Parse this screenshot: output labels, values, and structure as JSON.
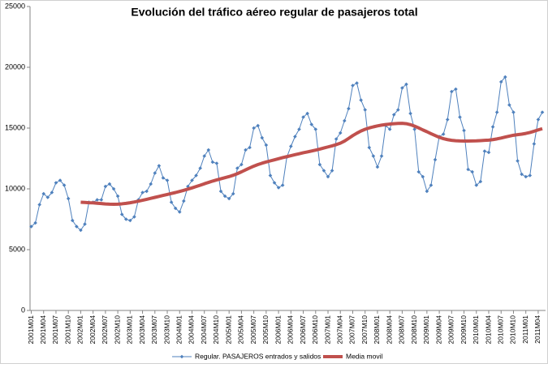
{
  "chart_data": {
    "type": "line",
    "title": "Evolución del tráfico aéreo regular de pasajeros total",
    "categories": [
      "2001M01",
      null,
      null,
      "2001M04",
      null,
      null,
      "2001M07",
      null,
      null,
      "2001M10",
      null,
      null,
      "2002M01",
      null,
      null,
      "2002M04",
      null,
      null,
      "2002M07",
      null,
      null,
      "2002M10",
      null,
      null,
      "2003M01",
      null,
      null,
      "2003M04",
      null,
      null,
      "2003M07",
      null,
      null,
      "2003M10",
      null,
      null,
      "2004M01",
      null,
      null,
      "2004M04",
      null,
      null,
      "2004M07",
      null,
      null,
      "2004M10",
      null,
      null,
      "2005M01",
      null,
      null,
      "2005M04",
      null,
      null,
      "2005M07",
      null,
      null,
      "2005M10",
      null,
      null,
      "2006M01",
      null,
      null,
      "2006M04",
      null,
      null,
      "2006M07",
      null,
      null,
      "2006M10",
      null,
      null,
      "2007M01",
      null,
      null,
      "2007M04",
      null,
      null,
      "2007M07",
      null,
      null,
      "2007M10",
      null,
      null,
      "2008M01",
      null,
      null,
      "2008M04",
      null,
      null,
      "2008M07",
      null,
      null,
      "2008M10",
      null,
      null,
      "2009M01",
      null,
      null,
      "2009M04",
      null,
      null,
      "2009M07",
      null,
      null,
      "2009M10",
      null,
      null,
      "2010M01",
      null,
      null,
      "2010M04",
      null,
      null,
      "2010M07",
      null,
      null,
      "2010M10",
      null,
      null,
      "2011M01",
      null,
      null,
      "2011M04",
      null
    ],
    "series": [
      {
        "name": "Regular. PASAJEROS entrados y salidos",
        "color": "#4f81bd",
        "marker": true,
        "values": [
          6900,
          7200,
          8700,
          9600,
          9300,
          9700,
          10500,
          10700,
          10300,
          9200,
          7400,
          6900,
          6600,
          7100,
          8900,
          8900,
          9100,
          9100,
          10200,
          10400,
          10000,
          9400,
          7900,
          7500,
          7400,
          7700,
          9100,
          9700,
          9800,
          10400,
          11300,
          11900,
          10900,
          10700,
          8900,
          8400,
          8100,
          9000,
          10200,
          10700,
          11100,
          11700,
          12700,
          13200,
          12200,
          12100,
          9800,
          9400,
          9200,
          9600,
          11700,
          12000,
          13200,
          13400,
          15000,
          15200,
          14200,
          13600,
          11100,
          10500,
          10100,
          10300,
          12600,
          13500,
          14300,
          14900,
          15900,
          16200,
          15300,
          14900,
          12000,
          11500,
          11000,
          11500,
          14100,
          14600,
          15600,
          16600,
          18500,
          18700,
          17300,
          16500,
          13400,
          12700,
          11800,
          12700,
          15200,
          14900,
          16100,
          16500,
          18300,
          18600,
          16200,
          14900,
          11400,
          11000,
          9800,
          10300,
          12400,
          14300,
          14500,
          15700,
          18000,
          18200,
          15900,
          14800,
          11600,
          11400,
          10300,
          10600,
          13100,
          13000,
          15100,
          16300,
          18800,
          19200,
          16900,
          16300,
          12300,
          11200,
          11000,
          11100,
          13700,
          15700,
          16300
        ]
      },
      {
        "name": "Media movil",
        "color": "#c0504d",
        "marker": false,
        "values": [
          null,
          null,
          null,
          null,
          null,
          null,
          null,
          null,
          null,
          null,
          null,
          null,
          8900,
          8880,
          8860,
          8850,
          8820,
          8790,
          8760,
          8740,
          8730,
          8740,
          8770,
          8810,
          8860,
          8920,
          8990,
          9060,
          9140,
          9220,
          9300,
          9380,
          9460,
          9540,
          9620,
          9700,
          9790,
          9880,
          9980,
          10080,
          10190,
          10300,
          10420,
          10530,
          10640,
          10740,
          10830,
          10920,
          11010,
          11120,
          11250,
          11400,
          11560,
          11720,
          11870,
          12000,
          12110,
          12210,
          12300,
          12390,
          12480,
          12570,
          12650,
          12730,
          12810,
          12890,
          12970,
          13040,
          13110,
          13190,
          13270,
          13360,
          13450,
          13540,
          13640,
          13760,
          13930,
          14150,
          14380,
          14580,
          14760,
          14900,
          15010,
          15100,
          15180,
          15240,
          15290,
          15330,
          15360,
          15380,
          15390,
          15360,
          15280,
          15160,
          15010,
          14850,
          14700,
          14540,
          14390,
          14240,
          14130,
          14050,
          13990,
          13960,
          13940,
          13930,
          13930,
          13940,
          13950,
          13970,
          13990,
          14010,
          14050,
          14110,
          14180,
          14260,
          14340,
          14410,
          14460,
          14500,
          14560,
          14640,
          14740,
          14850,
          14950
        ]
      }
    ],
    "ylim": [
      0,
      25000
    ],
    "yticks": [
      0,
      5000,
      10000,
      15000,
      20000,
      25000
    ],
    "grid": false,
    "legend": "bottom"
  }
}
